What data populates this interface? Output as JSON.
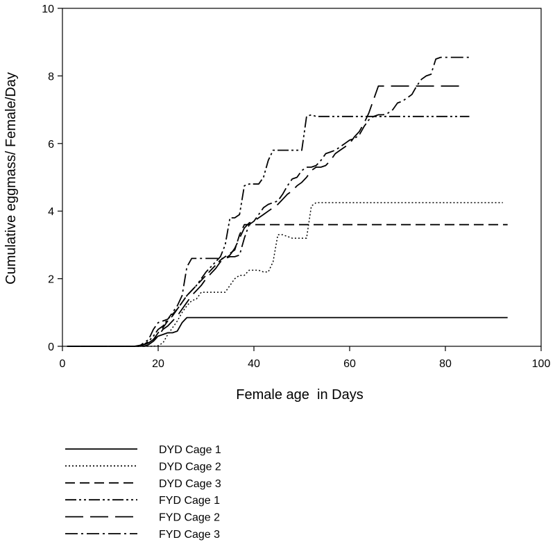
{
  "chart_data": {
    "type": "line",
    "title": "",
    "xlabel": "Female age  in Days",
    "ylabel": "Cumulative eggmass/ Female/Day",
    "xlim": [
      0,
      100
    ],
    "ylim": [
      0,
      10
    ],
    "xticks": [
      0,
      20,
      40,
      60,
      80,
      100
    ],
    "yticks": [
      0,
      2,
      4,
      6,
      8,
      10
    ],
    "grid": false,
    "legend_position": "bottom-left",
    "series": [
      {
        "name": "DYD Cage 1",
        "style": "solid",
        "x": [
          1,
          15,
          17,
          18,
          19,
          20,
          21,
          22,
          23,
          24,
          25,
          26,
          27,
          93
        ],
        "y": [
          0,
          0,
          0.05,
          0.1,
          0.2,
          0.3,
          0.35,
          0.4,
          0.4,
          0.45,
          0.7,
          0.85,
          0.85,
          0.85
        ]
      },
      {
        "name": "DYD Cage 2",
        "style": "dotted",
        "x": [
          1,
          19,
          20,
          21,
          22,
          23,
          24,
          25,
          26,
          27,
          28,
          29,
          30,
          31,
          32,
          33,
          34,
          35,
          36,
          37,
          38,
          39,
          40,
          41,
          42,
          43,
          44,
          45,
          46,
          47,
          48,
          49,
          50,
          51,
          52,
          53,
          92
        ],
        "y": [
          0,
          0,
          0.02,
          0.1,
          0.35,
          0.55,
          0.75,
          1.0,
          1.2,
          1.35,
          1.4,
          1.6,
          1.6,
          1.6,
          1.6,
          1.6,
          1.6,
          1.8,
          2.0,
          2.1,
          2.1,
          2.25,
          2.25,
          2.25,
          2.2,
          2.2,
          2.5,
          3.3,
          3.3,
          3.25,
          3.2,
          3.2,
          3.2,
          3.2,
          4.15,
          4.25,
          4.25
        ]
      },
      {
        "name": "DYD Cage 3",
        "style": "dashed",
        "x": [
          1,
          16,
          17,
          18,
          19,
          20,
          21,
          22,
          23,
          24,
          25,
          26,
          27,
          28,
          29,
          30,
          31,
          32,
          33,
          34,
          35,
          36,
          37,
          38,
          93
        ],
        "y": [
          0,
          0,
          0.05,
          0.1,
          0.2,
          0.4,
          0.55,
          0.75,
          0.9,
          1.1,
          1.3,
          1.5,
          1.65,
          1.8,
          1.95,
          2.1,
          2.25,
          2.4,
          2.55,
          2.65,
          2.75,
          2.85,
          3.3,
          3.6,
          3.6
        ]
      },
      {
        "name": "FYD Cage 1",
        "style": "dash-dot-dot",
        "x": [
          1,
          16,
          17,
          18,
          19,
          20,
          21,
          22,
          23,
          24,
          25,
          26,
          27,
          28,
          29,
          30,
          31,
          32,
          33,
          34,
          35,
          36,
          37,
          38,
          39,
          40,
          41,
          42,
          43,
          44,
          45,
          46,
          47,
          48,
          49,
          50,
          51,
          52,
          53,
          85
        ],
        "y": [
          0,
          0,
          0.05,
          0.15,
          0.3,
          0.5,
          0.6,
          0.8,
          0.95,
          1.1,
          1.3,
          1.5,
          1.65,
          1.8,
          2.0,
          2.2,
          2.35,
          2.5,
          2.65,
          3.0,
          3.8,
          3.8,
          3.9,
          4.75,
          4.8,
          4.8,
          4.8,
          5.0,
          5.5,
          5.8,
          5.8,
          5.8,
          5.8,
          5.8,
          5.8,
          5.8,
          6.8,
          6.85,
          6.8,
          6.8
        ]
      },
      {
        "name": "FYD Cage 2",
        "style": "long-dash",
        "x": [
          1,
          17,
          18,
          19,
          20,
          21,
          22,
          23,
          24,
          25,
          26,
          27,
          28,
          29,
          30,
          31,
          32,
          33,
          34,
          35,
          36,
          37,
          38,
          39,
          40,
          41,
          42,
          43,
          44,
          45,
          46,
          47,
          48,
          49,
          50,
          51,
          52,
          53,
          54,
          55,
          56,
          57,
          58,
          59,
          60,
          61,
          62,
          63,
          64,
          65,
          66,
          67,
          83
        ],
        "y": [
          0,
          0,
          0.05,
          0.15,
          0.3,
          0.5,
          0.6,
          0.75,
          0.9,
          1.1,
          1.3,
          1.5,
          1.65,
          1.8,
          2.0,
          2.15,
          2.3,
          2.5,
          2.6,
          2.7,
          2.9,
          3.2,
          3.5,
          3.65,
          3.7,
          3.8,
          3.9,
          4.0,
          4.1,
          4.2,
          4.35,
          4.5,
          4.6,
          4.75,
          4.85,
          5.0,
          5.2,
          5.3,
          5.3,
          5.35,
          5.5,
          5.7,
          5.8,
          5.9,
          6.0,
          6.2,
          6.35,
          6.6,
          6.9,
          7.3,
          7.7,
          7.7,
          7.7
        ]
      },
      {
        "name": "FYD Cage 3",
        "style": "dash-dot",
        "x": [
          1,
          16,
          17,
          18,
          19,
          20,
          21,
          22,
          23,
          24,
          25,
          26,
          27,
          28,
          29,
          30,
          31,
          32,
          33,
          34,
          35,
          36,
          37,
          38,
          39,
          40,
          41,
          42,
          43,
          44,
          45,
          46,
          47,
          48,
          49,
          50,
          51,
          52,
          53,
          54,
          55,
          56,
          57,
          58,
          59,
          60,
          61,
          62,
          63,
          64,
          65,
          66,
          67,
          68,
          69,
          70,
          71,
          72,
          73,
          74,
          75,
          76,
          77,
          78,
          79,
          85
        ],
        "y": [
          0,
          0,
          0.1,
          0.2,
          0.5,
          0.7,
          0.75,
          0.8,
          1.0,
          1.2,
          1.5,
          2.35,
          2.6,
          2.6,
          2.6,
          2.6,
          2.6,
          2.6,
          2.6,
          2.6,
          2.65,
          2.65,
          2.7,
          3.2,
          3.6,
          3.7,
          3.9,
          4.1,
          4.2,
          4.25,
          4.3,
          4.5,
          4.75,
          4.95,
          5.0,
          5.2,
          5.3,
          5.3,
          5.35,
          5.5,
          5.7,
          5.75,
          5.8,
          5.9,
          6.0,
          6.1,
          6.15,
          6.25,
          6.5,
          6.7,
          6.8,
          6.85,
          6.85,
          6.9,
          7.0,
          7.2,
          7.25,
          7.35,
          7.45,
          7.7,
          7.9,
          8.0,
          8.05,
          8.5,
          8.55,
          8.55
        ]
      }
    ]
  }
}
